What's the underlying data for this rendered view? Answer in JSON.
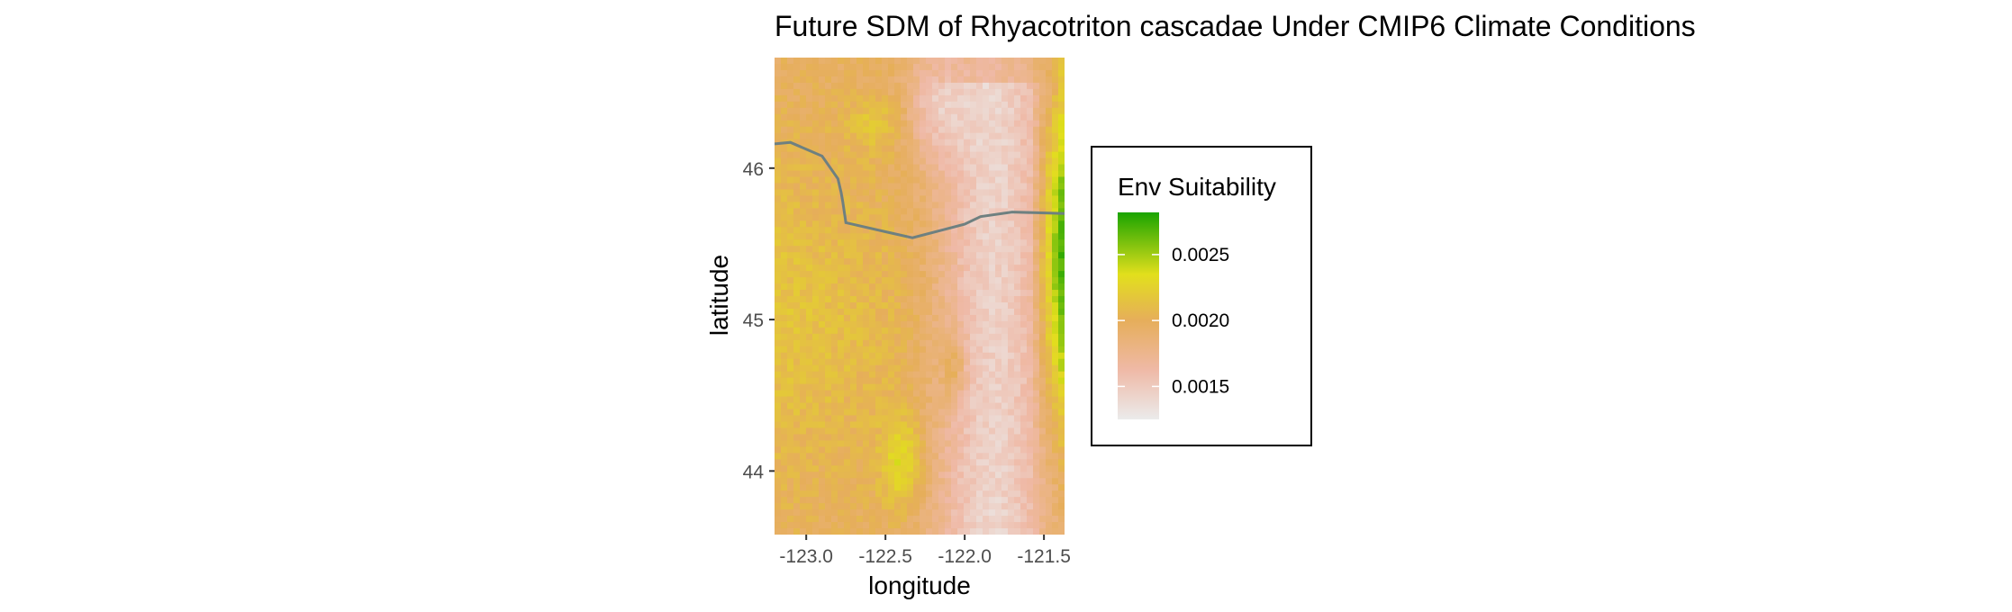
{
  "title": "Future SDM of Rhyacotriton cascadae Under CMIP6 Climate Conditions",
  "axes": {
    "xlabel": "longitude",
    "ylabel": "latitude",
    "xlim": [
      -123.2,
      -121.37
    ],
    "ylim": [
      43.58,
      46.73
    ],
    "xticks": [
      "-123.0",
      "-122.5",
      "-122.0",
      "-121.5"
    ],
    "xtick_values": [
      -123.0,
      -122.5,
      -122.0,
      -121.5
    ],
    "yticks": [
      "44",
      "45",
      "46"
    ],
    "ytick_values": [
      44,
      45,
      46
    ]
  },
  "legend": {
    "title": "Env Suitability",
    "labels": [
      "0.0025",
      "0.0020",
      "0.0015"
    ],
    "values": [
      0.0025,
      0.002,
      0.0015
    ],
    "range": [
      0.00125,
      0.00282
    ],
    "colors": [
      "#ebebeb",
      "#efb9a6",
      "#e6ae5a",
      "#e2df1c",
      "#1aa400"
    ]
  },
  "colors": {
    "boundary_line": "#6e8080",
    "background": "#ffffff"
  },
  "chart_data": {
    "type": "heatmap",
    "title": "Future SDM of Rhyacotriton cascadae Under CMIP6 Climate Conditions",
    "xlabel": "longitude",
    "ylabel": "latitude",
    "variable": "Env Suitability",
    "xlim": [
      -123.2,
      -121.37
    ],
    "ylim": [
      43.58,
      46.73
    ],
    "grid": false,
    "legend_position": "right",
    "pattern": "raster of environmental suitability; high values (green, ~0.0028) along the eastern edge around latitude 44.2-46.0; low values (pink/white, ~0.0014) in a north-south band near longitude -122.2 to -121.6; mid values (orange/yellow, ~0.0019-0.0022) across the west",
    "boundary_line": {
      "lon": [
        -123.2,
        -123.1,
        -122.9,
        -122.8,
        -122.78,
        -122.77,
        -122.75,
        -122.5,
        -122.33,
        -122.0,
        -121.9,
        -121.7,
        -121.37
      ],
      "lat": [
        46.16,
        46.17,
        46.08,
        45.93,
        45.84,
        45.78,
        45.64,
        45.58,
        45.54,
        45.63,
        45.68,
        45.71,
        45.7
      ]
    }
  }
}
